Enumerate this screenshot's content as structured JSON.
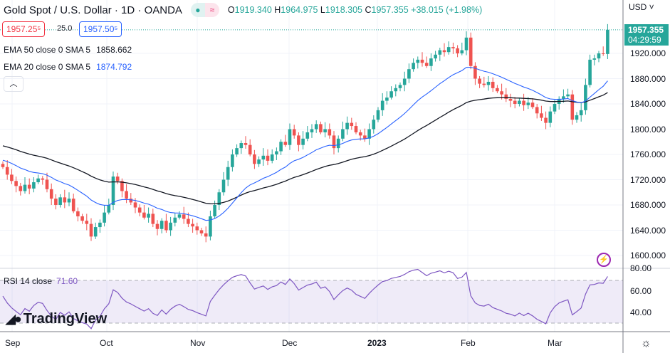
{
  "header": {
    "title": "Gold Spot / U.S. Dollar · 1D · OANDA",
    "open_label": "O",
    "open": "1919.340",
    "high_label": "H",
    "high": "1964.975",
    "low_label": "L",
    "low": "1918.305",
    "close_label": "C",
    "close": "1957.355",
    "change": "+38.015 (+1.98%)",
    "status_icons": [
      "market-open-dot-icon",
      "data-delayed-icon"
    ]
  },
  "trade": {
    "bid": "1957.25⁵",
    "spread": "25.0",
    "ask": "1957.50⁵"
  },
  "indicators": [
    {
      "label": "EMA 50 close 0 SMA 5",
      "value": "1858.662",
      "color": "#131722"
    },
    {
      "label": "EMA 20 close 0 SMA 5",
      "value": "1874.792",
      "color": "#2962ff"
    }
  ],
  "rsi": {
    "label": "RSI 14 close",
    "value": "71.60",
    "color": "#7e57c2",
    "ticks": [
      "80.00",
      "60.00",
      "40.00"
    ]
  },
  "price_axis": {
    "currency": "USD",
    "ticks": [
      "1920.000",
      "1880.000",
      "1840.000",
      "1800.000",
      "1760.000",
      "1720.000",
      "1680.000",
      "1640.000",
      "1600.000"
    ],
    "last_price": "1957.355",
    "countdown": "04:29:59"
  },
  "time_axis": {
    "ticks": [
      "Sep",
      "Oct",
      "Nov",
      "Dec",
      "2023",
      "Feb",
      "Mar"
    ]
  },
  "logo": "TradingView",
  "colors": {
    "up": "#26a69a",
    "down": "#ef5350",
    "ema50": "#131722",
    "ema20": "#2962ff",
    "rsi": "#7e57c2"
  },
  "chart_data": {
    "type": "candlestick",
    "ylim": [
      1590,
      1975
    ],
    "rsi_ylim": [
      20,
      82
    ],
    "closes": [
      1740,
      1728,
      1718,
      1710,
      1702,
      1712,
      1706,
      1716,
      1722,
      1720,
      1705,
      1690,
      1680,
      1692,
      1684,
      1690,
      1670,
      1662,
      1655,
      1650,
      1630,
      1645,
      1652,
      1668,
      1680,
      1725,
      1718,
      1702,
      1690,
      1684,
      1676,
      1668,
      1660,
      1666,
      1650,
      1642,
      1655,
      1640,
      1652,
      1660,
      1665,
      1658,
      1650,
      1646,
      1640,
      1635,
      1630,
      1662,
      1680,
      1700,
      1720,
      1740,
      1760,
      1770,
      1778,
      1775,
      1760,
      1745,
      1752,
      1758,
      1750,
      1760,
      1765,
      1780,
      1775,
      1800,
      1790,
      1775,
      1785,
      1795,
      1800,
      1808,
      1795,
      1800,
      1790,
      1770,
      1785,
      1800,
      1810,
      1805,
      1795,
      1790,
      1785,
      1800,
      1815,
      1830,
      1845,
      1850,
      1860,
      1865,
      1870,
      1880,
      1895,
      1905,
      1910,
      1905,
      1900,
      1912,
      1918,
      1925,
      1922,
      1930,
      1928,
      1920,
      1925,
      1945,
      1900,
      1880,
      1872,
      1870,
      1875,
      1865,
      1860,
      1855,
      1848,
      1845,
      1840,
      1845,
      1838,
      1842,
      1835,
      1825,
      1818,
      1810,
      1828,
      1840,
      1848,
      1852,
      1855,
      1815,
      1822,
      1830,
      1870,
      1910,
      1912,
      1920,
      1919,
      1957.355
    ]
  }
}
